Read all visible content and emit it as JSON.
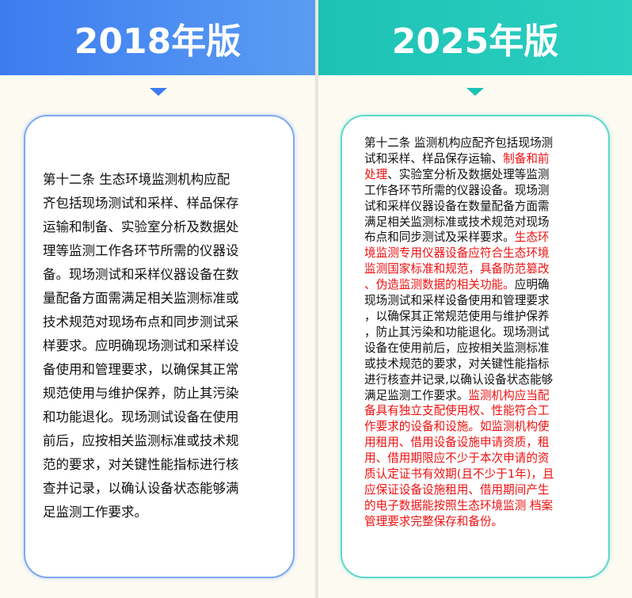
{
  "left": {
    "title": "2018年版",
    "accent": "#3c7cf0",
    "lines": [
      "第十二条 生态环境监测机构应配",
      "齐包括现场测试和采样、样品保存",
      "运输和制备、实验室分析及数据处",
      "理等监测工作各环节所需的仪器设",
      "备。现场测试和采样仪器设备在数",
      "量配备方面需满足相关监测标准或",
      "技术规范对现场布点和同步测试采",
      "样要求。应明确现场测试和采样设",
      "备使用和管理要求，以确保其正常",
      "规范使用与维护保养，防止其污染",
      "和功能退化。现场测试设备在使用",
      "前后，应按相关监测标准或技术规",
      "范的要求，对关键性能指标进行核",
      "查并记录，以确认设备状态能够满",
      "足监测工作要求。"
    ]
  },
  "right": {
    "title": "2025年版",
    "accent": "#1cc2b4",
    "highlight_color": "#f01010",
    "lines": [
      [
        {
          "t": "第十二条 监测机构应配齐包括现场测",
          "red": false
        }
      ],
      [
        {
          "t": "试和采样、样品保存运输、",
          "red": false
        },
        {
          "t": "制备和前",
          "red": true
        }
      ],
      [
        {
          "t": "处理",
          "red": true
        },
        {
          "t": "、实验室分析及数据处理等监测",
          "red": false
        }
      ],
      [
        {
          "t": "工作各环节所需的仪器设备。现场测",
          "red": false
        }
      ],
      [
        {
          "t": "试和采样仪器设备在数量配备方面需",
          "red": false
        }
      ],
      [
        {
          "t": "满足相关监测标准或技术规范对现场",
          "red": false
        }
      ],
      [
        {
          "t": "布点和同步测试及采样要求。",
          "red": false
        },
        {
          "t": "生态环",
          "red": true
        }
      ],
      [
        {
          "t": "境监测专用仪器设备应符合生态环境",
          "red": true
        }
      ],
      [
        {
          "t": "监测国家标准和规范，具备防范篡改",
          "red": true
        }
      ],
      [
        {
          "t": "、伪造监测数据的相关功能。",
          "red": true
        },
        {
          "t": "应明确",
          "red": false
        }
      ],
      [
        {
          "t": "现场测试和采样设备使用和管理要求",
          "red": false
        }
      ],
      [
        {
          "t": "，以确保其正常规范使用与维护保养",
          "red": false
        }
      ],
      [
        {
          "t": "，防止其污染和功能退化。现场测试",
          "red": false
        }
      ],
      [
        {
          "t": "设备在使用前后，应按相关监测标准",
          "red": false
        }
      ],
      [
        {
          "t": "或技术规范的要求，对关键性能指标",
          "red": false
        }
      ],
      [
        {
          "t": "进行核查并记录,以确认设备状态能够",
          "red": false
        }
      ],
      [
        {
          "t": "满足监测工作要求。",
          "red": false
        },
        {
          "t": "监测机构应当配",
          "red": true
        }
      ],
      [
        {
          "t": "备具有独立支配使用权、性能符合工",
          "red": true
        }
      ],
      [
        {
          "t": "作要求的设备和设施。如监测机构使",
          "red": true
        }
      ],
      [
        {
          "t": "用租用、借用设备设施申请资质，租",
          "red": true
        }
      ],
      [
        {
          "t": "用、借用期限应不少于本次申请的资",
          "red": true
        }
      ],
      [
        {
          "t": "质认定证书有效期(且不少于1年)，且",
          "red": true
        }
      ],
      [
        {
          "t": "应保证设备设施租用、借用期间产生",
          "red": true
        }
      ],
      [
        {
          "t": "的电子数据能按照生态环境监测 档案",
          "red": true
        }
      ],
      [
        {
          "t": "管理要求完整保存和备份。",
          "red": true
        }
      ]
    ]
  }
}
